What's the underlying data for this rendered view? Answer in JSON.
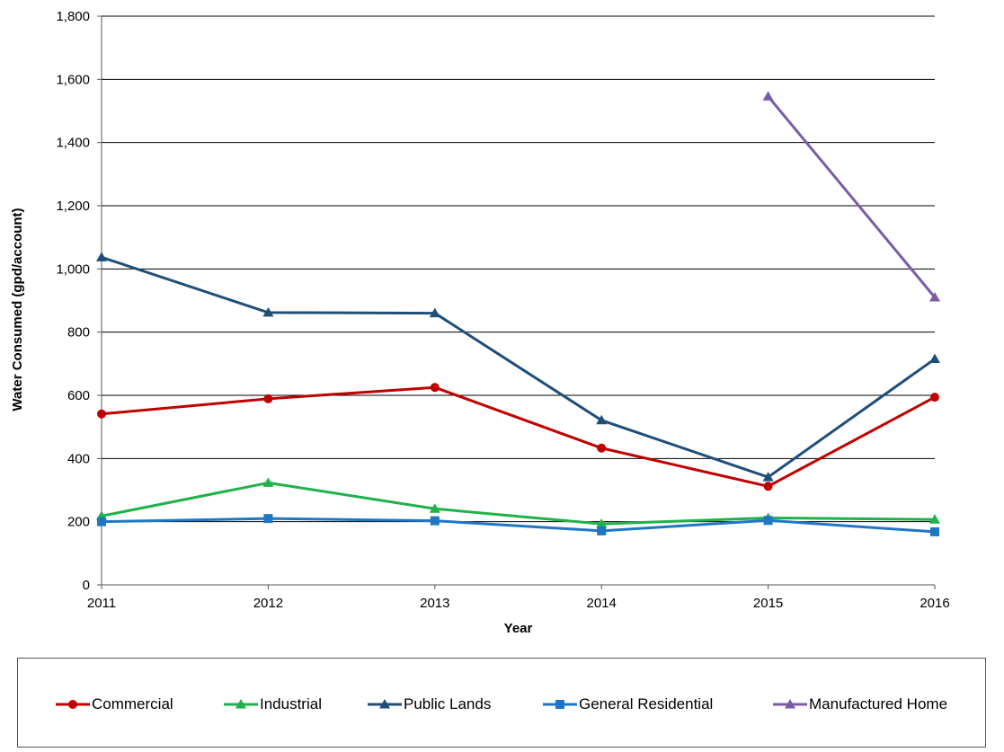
{
  "chart_data": {
    "type": "line",
    "xlabel": "Year",
    "ylabel": "Water Consumed (gpd/account)",
    "ylim": [
      0,
      1800
    ],
    "ytick_step": 200,
    "ytick_labels": [
      "0",
      "200",
      "400",
      "600",
      "800",
      "1,000",
      "1,200",
      "1,400",
      "1,600",
      "1,800"
    ],
    "categories": [
      "2011",
      "2012",
      "2013",
      "2014",
      "2015",
      "2016"
    ],
    "grid": "horizontal",
    "legend_position": "bottom",
    "series": [
      {
        "name": "Commercial",
        "color": "#c00000",
        "marker": "circle",
        "values": [
          541,
          589,
          625,
          433,
          312,
          594
        ]
      },
      {
        "name": "Industrial",
        "color": "#1fb14a",
        "marker": "triangle",
        "values": [
          218,
          323,
          241,
          193,
          212,
          207
        ]
      },
      {
        "name": "Public Lands",
        "color": "#1f4e79",
        "marker": "triangle",
        "values": [
          1037,
          862,
          860,
          521,
          341,
          715
        ]
      },
      {
        "name": "General Residential",
        "color": "#1f77c4",
        "marker": "square",
        "values": [
          200,
          210,
          203,
          171,
          204,
          168
        ]
      },
      {
        "name": "Manufactured Home",
        "color": "#7b5ba6",
        "marker": "triangle",
        "values": [
          null,
          null,
          null,
          null,
          1546,
          910
        ]
      }
    ]
  }
}
